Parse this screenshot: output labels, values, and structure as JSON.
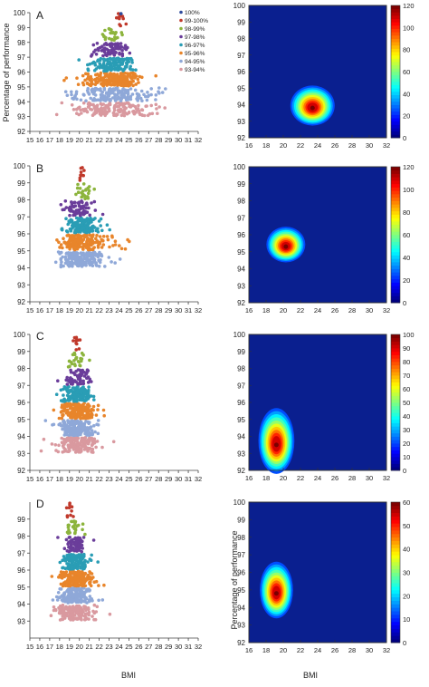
{
  "legend": [
    {
      "label": "100%",
      "color": "#2f4b9c"
    },
    {
      "label": "99-100%",
      "color": "#c0392b"
    },
    {
      "label": "98-99%",
      "color": "#8cb43c"
    },
    {
      "label": "97-98%",
      "color": "#6a3d9a"
    },
    {
      "label": "96-97%",
      "color": "#2a9db5"
    },
    {
      "label": "95-96%",
      "color": "#e8852b"
    },
    {
      "label": "94-95%",
      "color": "#8fa8d8"
    },
    {
      "label": "93-94%",
      "color": "#d9999f"
    }
  ],
  "ylabel_left": "Percentage of performance",
  "ylabel_right": "Percentage of performance",
  "xlabel_left": "BMI",
  "xlabel_right": "BMI",
  "chart_data": [
    {
      "panel": "A",
      "type": "scatter",
      "xlim": [
        15,
        32
      ],
      "ylim": [
        92,
        100
      ],
      "xticks": [
        15,
        16,
        17,
        18,
        19,
        20,
        21,
        22,
        23,
        24,
        25,
        26,
        27,
        28,
        29,
        30,
        31,
        32
      ],
      "yticks": [
        92,
        93,
        94,
        95,
        96,
        97,
        98,
        99,
        100
      ],
      "bands": [
        {
          "lo": 93,
          "hi": 94,
          "xmin": 16.8,
          "xmax": 30.8,
          "xmean": 23.2,
          "n": 0
        },
        {
          "lo": 94,
          "hi": 95,
          "xmin": 16.8,
          "xmax": 30.5,
          "xmean": 23.2,
          "n": 0
        },
        {
          "lo": 95,
          "hi": 96,
          "xmin": 17,
          "xmax": 28,
          "xmean": 23.5,
          "n": 0
        },
        {
          "lo": 96,
          "hi": 97,
          "xmin": 19,
          "xmax": 27,
          "xmean": 23.5,
          "n": 0
        },
        {
          "lo": 97,
          "hi": 98,
          "xmin": 19.5,
          "xmax": 26,
          "xmean": 23.3,
          "n": 0
        },
        {
          "lo": 98,
          "hi": 99,
          "xmin": 21,
          "xmax": 25.5,
          "xmean": 23.5,
          "n": 0
        },
        {
          "lo": 99,
          "hi": 100,
          "xmin": 23.5,
          "xmax": 25,
          "xmean": 24.2,
          "n": 0
        }
      ]
    },
    {
      "panel": "A-density",
      "type": "heatmap",
      "xlim": [
        16,
        32
      ],
      "ylim": [
        92,
        100
      ],
      "peak": [
        23.4,
        93.8
      ],
      "spread": [
        1.6,
        0.75
      ],
      "colorbar": {
        "min": 0,
        "max": 120,
        "ticks": [
          0,
          20,
          40,
          60,
          80,
          100,
          120
        ]
      }
    },
    {
      "panel": "B",
      "type": "scatter",
      "xlim": [
        15,
        32
      ],
      "ylim": [
        92,
        100
      ],
      "xticks": [
        15,
        16,
        17,
        18,
        19,
        20,
        21,
        22,
        23,
        24,
        25,
        26,
        27,
        28,
        29,
        30,
        31,
        32
      ],
      "yticks": [
        92,
        93,
        94,
        95,
        96,
        97,
        98,
        99,
        100
      ],
      "bands": [
        {
          "lo": 94,
          "hi": 95,
          "xmin": 16.5,
          "xmax": 24.5,
          "xmean": 20,
          "n": 0
        },
        {
          "lo": 95,
          "hi": 96,
          "xmin": 16.8,
          "xmax": 25.5,
          "xmean": 20.2,
          "n": 0
        },
        {
          "lo": 96,
          "hi": 97,
          "xmin": 17,
          "xmax": 23.5,
          "xmean": 20.2,
          "n": 0
        },
        {
          "lo": 97,
          "hi": 98,
          "xmin": 17.5,
          "xmax": 22.5,
          "xmean": 20.2,
          "n": 0
        },
        {
          "lo": 98,
          "hi": 99,
          "xmin": 18.5,
          "xmax": 22,
          "xmean": 20.5,
          "n": 0
        },
        {
          "lo": 99,
          "hi": 100,
          "xmin": 19.5,
          "xmax": 21,
          "xmean": 20.3,
          "n": 0
        }
      ]
    },
    {
      "panel": "B-density",
      "type": "heatmap",
      "xlim": [
        16,
        32
      ],
      "ylim": [
        92,
        100
      ],
      "peak": [
        20.3,
        95.3
      ],
      "spread": [
        1.4,
        0.65
      ],
      "colorbar": {
        "min": 0,
        "max": 120,
        "ticks": [
          0,
          20,
          40,
          60,
          80,
          100,
          120
        ]
      }
    },
    {
      "panel": "C",
      "type": "scatter",
      "xlim": [
        15,
        32
      ],
      "ylim": [
        92,
        100
      ],
      "xticks": [
        15,
        16,
        17,
        18,
        19,
        20,
        21,
        22,
        23,
        24,
        25,
        26,
        27,
        28,
        29,
        30,
        31,
        32
      ],
      "yticks": [
        92,
        93,
        94,
        95,
        96,
        97,
        98,
        99,
        100
      ],
      "bands": [
        {
          "lo": 93,
          "hi": 94,
          "xmin": 16,
          "xmax": 24,
          "xmean": 19.8,
          "n": 0
        },
        {
          "lo": 94,
          "hi": 95,
          "xmin": 16.5,
          "xmax": 23,
          "xmean": 19.8,
          "n": 0
        },
        {
          "lo": 95,
          "hi": 96,
          "xmin": 17,
          "xmax": 23,
          "xmean": 19.8,
          "n": 0
        },
        {
          "lo": 96,
          "hi": 97,
          "xmin": 17,
          "xmax": 22.5,
          "xmean": 19.8,
          "n": 0
        },
        {
          "lo": 97,
          "hi": 98,
          "xmin": 17.5,
          "xmax": 22,
          "xmean": 19.8,
          "n": 0
        },
        {
          "lo": 98,
          "hi": 99,
          "xmin": 18,
          "xmax": 21.5,
          "xmean": 19.7,
          "n": 0
        },
        {
          "lo": 99,
          "hi": 100,
          "xmin": 18.5,
          "xmax": 21,
          "xmean": 19.8,
          "n": 0
        }
      ]
    },
    {
      "panel": "C-density",
      "type": "heatmap",
      "xlim": [
        16,
        32
      ],
      "ylim": [
        92,
        100
      ],
      "peak": [
        19.2,
        93.5
      ],
      "spread": [
        1.3,
        1.2
      ],
      "colorbar": {
        "min": 0,
        "max": 100,
        "ticks": [
          0,
          10,
          20,
          30,
          40,
          50,
          60,
          70,
          80,
          90,
          100
        ]
      }
    },
    {
      "panel": "D",
      "type": "scatter",
      "xlim": [
        15,
        32
      ],
      "ylim": [
        92,
        100
      ],
      "xticks": [
        15,
        16,
        17,
        18,
        19,
        20,
        21,
        22,
        23,
        24,
        25,
        26,
        27,
        28,
        29,
        30,
        31,
        32
      ],
      "yticks": [
        93,
        94,
        95,
        96,
        97,
        98,
        99
      ],
      "bands": [
        {
          "lo": 93,
          "hi": 94,
          "xmin": 16,
          "xmax": 23.5,
          "xmean": 19.6,
          "n": 0
        },
        {
          "lo": 94,
          "hi": 95,
          "xmin": 16.5,
          "xmax": 22.5,
          "xmean": 19.6,
          "n": 0
        },
        {
          "lo": 95,
          "hi": 96,
          "xmin": 17,
          "xmax": 22.5,
          "xmean": 19.6,
          "n": 0
        },
        {
          "lo": 96,
          "hi": 97,
          "xmin": 17.3,
          "xmax": 22,
          "xmean": 19.6,
          "n": 0
        },
        {
          "lo": 97,
          "hi": 98,
          "xmin": 17.5,
          "xmax": 21.5,
          "xmean": 19.6,
          "n": 0
        },
        {
          "lo": 98,
          "hi": 99,
          "xmin": 17.5,
          "xmax": 21,
          "xmean": 19.4,
          "n": 0
        },
        {
          "lo": 99,
          "hi": 100,
          "xmin": 17.5,
          "xmax": 20.5,
          "xmean": 19,
          "n": 0
        }
      ]
    },
    {
      "panel": "D-density",
      "type": "heatmap",
      "xlim": [
        16,
        32
      ],
      "ylim": [
        92,
        100
      ],
      "peak": [
        19.2,
        94.8
      ],
      "spread": [
        1.2,
        1.0
      ],
      "colorbar": {
        "min": 0,
        "max": 60,
        "ticks": [
          0,
          10,
          20,
          30,
          40,
          50,
          60
        ]
      }
    }
  ]
}
